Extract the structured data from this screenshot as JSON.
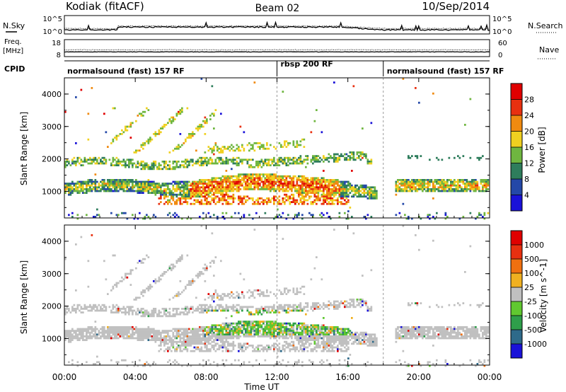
{
  "header": {
    "radar": "Kodiak (fitACF)",
    "beam": "Beam 02",
    "date": "10/Sep/2014"
  },
  "status": {
    "nsky_label": "N.Sky",
    "nsearch_label": "N.Search",
    "nsky_ticks": [
      "10^5",
      "10^0"
    ],
    "nsearch_ticks": [
      "10^5",
      "10^0"
    ],
    "freq_label_1": "Freq.",
    "freq_label_2": "[MHz]",
    "freq_ticks": [
      "18",
      "8"
    ],
    "nave_label": "Nave",
    "nave_ticks": [
      "60",
      "0"
    ],
    "cpid_label": "CPID",
    "cpid_segments": [
      {
        "label": "normalsound (fast) 157 RF",
        "start": 0,
        "end": 12
      },
      {
        "label": "rbsp 200 RF",
        "start": 12,
        "end": 18
      },
      {
        "label": "normalsound (fast) 157 RF",
        "start": 18,
        "end": 24
      }
    ]
  },
  "chart_data": [
    {
      "type": "heatmap",
      "panel": "power",
      "ylabel": "Slant Range [km]",
      "colorbar_label": "Power [dB]",
      "colorbar_ticks": [
        "28",
        "24",
        "20",
        "16",
        "12",
        "8",
        "4"
      ],
      "colors": [
        "#1a12d8",
        "#2448a8",
        "#2e7d5c",
        "#6fb640",
        "#f0d020",
        "#f08a10",
        "#e83010",
        "#e00000"
      ],
      "yticks": [
        "4000",
        "3000",
        "2000",
        "1000"
      ],
      "ylim": [
        180,
        4500
      ]
    },
    {
      "type": "heatmap",
      "panel": "velocity",
      "ylabel": "Slant Range [km]",
      "colorbar_label": "Velocity [m s^-1]",
      "colorbar_ticks": [
        "1000",
        "500",
        "100",
        "25",
        "-25",
        "-100",
        "-500",
        "-1000"
      ],
      "colors": [
        "#1a12d8",
        "#2e6a8a",
        "#2e9e4a",
        "#60c830",
        "#c0c0c0",
        "#f0b020",
        "#f07010",
        "#e83010",
        "#e00000"
      ],
      "yticks": [
        "4000",
        "3000",
        "2000",
        "1000"
      ],
      "ylim": [
        180,
        4500
      ]
    }
  ],
  "xaxis": {
    "label": "Time UT",
    "ticks": [
      "00:00",
      "04:00",
      "08:00",
      "12:00",
      "16:00",
      "20:00",
      "00:00"
    ],
    "range_hours": [
      0,
      24
    ]
  }
}
